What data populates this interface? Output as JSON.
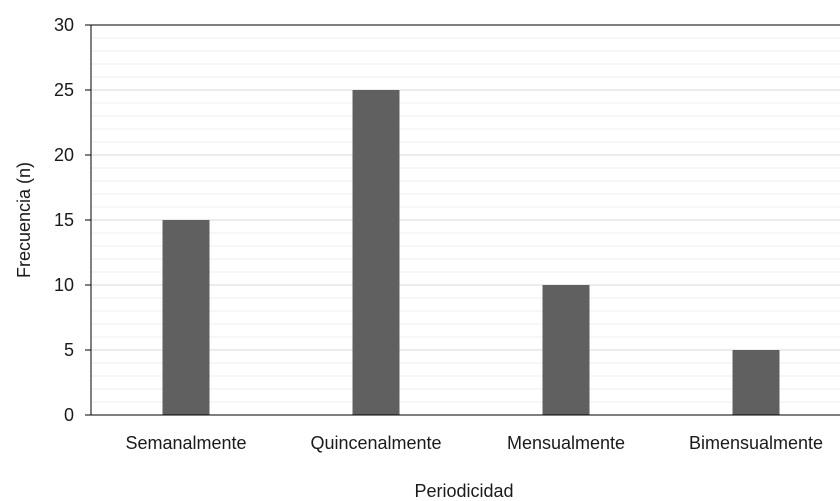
{
  "chart_data": {
    "type": "bar",
    "categories": [
      "Semanalmente",
      "Quincenalmente",
      "Mensualmente",
      "Bimensualmente"
    ],
    "values": [
      15,
      25,
      10,
      5
    ],
    "title": "",
    "xlabel": "Periodicidad",
    "ylabel": "Frecuencia (n)",
    "ylim": [
      0,
      30
    ],
    "yticks": [
      0,
      5,
      10,
      15,
      20,
      25,
      30
    ],
    "grid": true,
    "legend": "none",
    "colors": {
      "bar": "#606060",
      "grid": "#d9d9d9",
      "axis": "#000000"
    }
  }
}
